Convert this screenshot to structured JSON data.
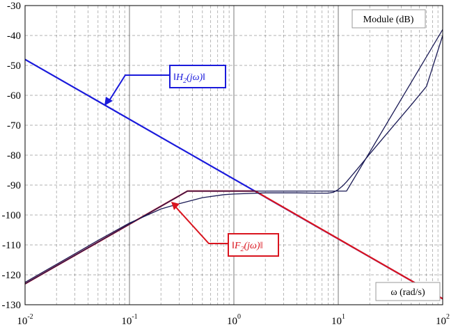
{
  "chart_data": {
    "type": "line",
    "title": "",
    "x_scale": "log",
    "xlim": [
      0.01,
      100
    ],
    "ylim": [
      -130,
      -30
    ],
    "grid": true,
    "y_ticks": [
      "-30",
      "-40",
      "-50",
      "-60",
      "-70",
      "-80",
      "-90",
      "-100",
      "-110",
      "-120",
      "-130"
    ],
    "x_ticks": [
      {
        "base": "10",
        "exp": "-2"
      },
      {
        "base": "10",
        "exp": "-1"
      },
      {
        "base": "10",
        "exp": "0"
      },
      {
        "base": "10",
        "exp": "1"
      },
      {
        "base": "10",
        "exp": "2"
      }
    ],
    "ylabel_box": "Module (dB)",
    "xlabel_box": "ω (rad/s)",
    "annotations": {
      "h2": {
        "base": "H",
        "sub": "2",
        "arg": "(jω)",
        "color": "#1a1adb"
      },
      "f2": {
        "base": "F",
        "sub": "2",
        "arg": "(jω)",
        "color": "#d9141e"
      }
    },
    "series": [
      {
        "color": "#1a1adb",
        "x": [
          0.01,
          100
        ],
        "y": [
          -48,
          -128
        ]
      },
      {
        "color": "#d9141e",
        "x": [
          0.01,
          0.36,
          1.6,
          100
        ],
        "y": [
          -123,
          -92,
          -92,
          -128
        ]
      },
      {
        "color": "#1a1a55",
        "x": [
          0.01,
          0.36,
          12,
          100
        ],
        "y": [
          -123,
          -92,
          -92,
          -38
        ]
      },
      {
        "color": "#1a1a55",
        "x": [
          0.01,
          0.02,
          0.05,
          0.1,
          0.2,
          0.3,
          0.5,
          0.8,
          1,
          2,
          4,
          6,
          8,
          9,
          10,
          11,
          12,
          15,
          20,
          30,
          50,
          70,
          100
        ],
        "y": [
          -122.5,
          -116.5,
          -108.5,
          -102.7,
          -98,
          -96.2,
          -94.2,
          -93.2,
          -93,
          -92.6,
          -92.6,
          -92.7,
          -92.7,
          -92.4,
          -91.5,
          -90.3,
          -88.9,
          -84.9,
          -79.6,
          -72.3,
          -63.2,
          -57,
          -40
        ]
      }
    ]
  }
}
